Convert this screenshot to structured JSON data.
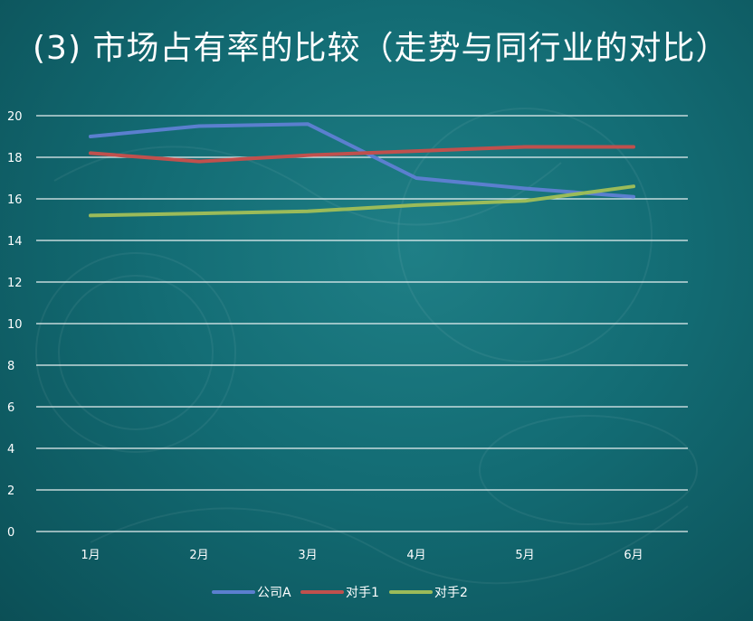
{
  "title": "(3) 市场占有率的比较（走势与同行业的对比）",
  "colors": {
    "background": "#136c74",
    "gridline": "#ffffff",
    "text": "#ffffff"
  },
  "chart_data": {
    "type": "line",
    "title": "",
    "xlabel": "",
    "ylabel": "",
    "categories": [
      "1月",
      "2月",
      "3月",
      "4月",
      "5月",
      "6月"
    ],
    "ylim": [
      0,
      20
    ],
    "yticks": [
      0,
      2,
      4,
      6,
      8,
      10,
      12,
      14,
      16,
      18,
      20
    ],
    "grid": true,
    "legend_position": "bottom",
    "series": [
      {
        "name": "公司A",
        "color": "#5b7fcf",
        "values": [
          19.0,
          19.5,
          19.6,
          17.0,
          16.5,
          16.1
        ]
      },
      {
        "name": "对手1",
        "color": "#c0504d",
        "values": [
          18.2,
          17.8,
          18.1,
          18.3,
          18.5,
          18.5
        ]
      },
      {
        "name": "对手2",
        "color": "#9bbb59",
        "values": [
          15.2,
          15.3,
          15.4,
          15.7,
          15.9,
          16.6
        ]
      }
    ]
  }
}
